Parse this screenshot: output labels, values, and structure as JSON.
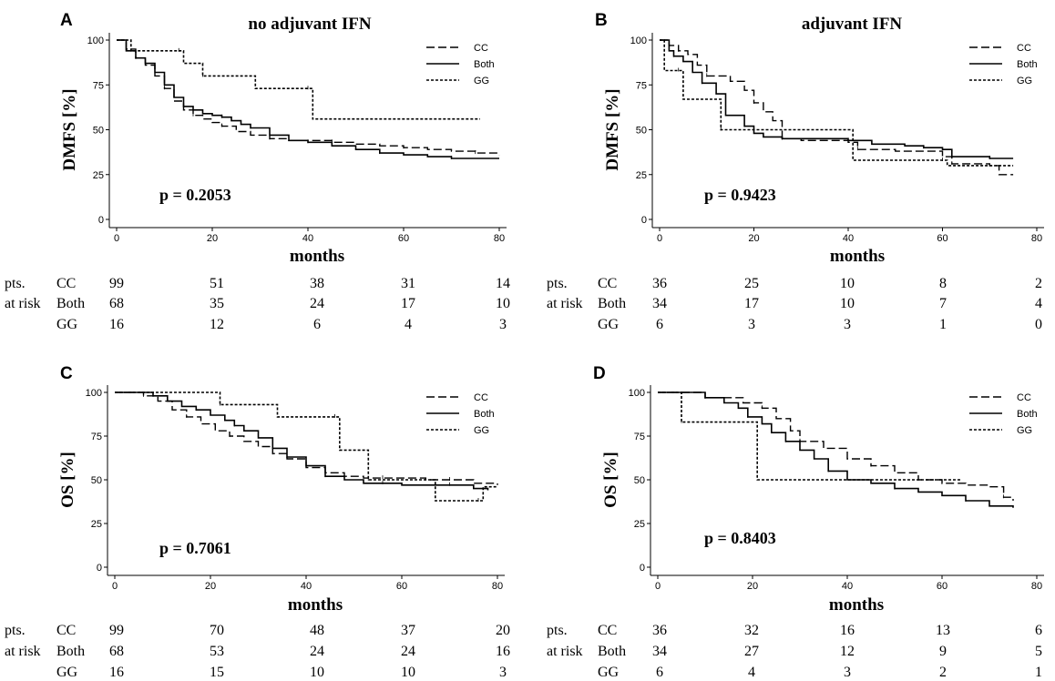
{
  "chart_data": [
    {
      "type": "line",
      "panel": "A",
      "title": "no adjuvant IFN",
      "ylabel": "DMFS [%]",
      "xlabel": "months",
      "xlim": [
        0,
        80
      ],
      "ylim": [
        0,
        100
      ],
      "x_ticks": [
        0,
        20,
        40,
        60,
        80
      ],
      "y_ticks": [
        0,
        25,
        50,
        75,
        100
      ],
      "p_value": "p = 0.2053",
      "series": [
        {
          "name": "CC",
          "style": "dashed",
          "x": [
            0,
            2,
            4,
            6,
            8,
            10,
            12,
            14,
            16,
            18,
            20,
            22,
            25,
            28,
            32,
            36,
            40,
            45,
            50,
            55,
            60,
            65,
            70,
            75,
            80
          ],
          "y": [
            100,
            95,
            90,
            86,
            80,
            73,
            66,
            61,
            58,
            56,
            54,
            52,
            49,
            47,
            45,
            44,
            44,
            43,
            42,
            41,
            40,
            39,
            38,
            37,
            36
          ]
        },
        {
          "name": "Both",
          "style": "solid",
          "x": [
            0,
            2,
            4,
            6,
            8,
            10,
            12,
            14,
            16,
            18,
            20,
            22,
            24,
            26,
            28,
            32,
            36,
            40,
            45,
            50,
            55,
            60,
            65,
            70,
            75,
            80
          ],
          "y": [
            100,
            94,
            90,
            87,
            82,
            75,
            68,
            63,
            61,
            59,
            58,
            57,
            55,
            53,
            51,
            47,
            44,
            43,
            41,
            39,
            37,
            36,
            35,
            34,
            34,
            34
          ]
        },
        {
          "name": "GG",
          "style": "dotted",
          "x": [
            0,
            3,
            13,
            14,
            17,
            18,
            28,
            29,
            40,
            41,
            76
          ],
          "y": [
            100,
            94,
            94,
            87,
            87,
            80,
            80,
            73,
            73,
            56,
            56
          ]
        }
      ],
      "legend": [
        "CC",
        "Both",
        "GG"
      ],
      "risk_table": {
        "label1": "pts.",
        "label2": "at risk",
        "rows": [
          {
            "name": "CC",
            "values": [
              "99",
              "51",
              "38",
              "31",
              "14"
            ]
          },
          {
            "name": "Both",
            "values": [
              "68",
              "35",
              "24",
              "17",
              "10"
            ]
          },
          {
            "name": "GG",
            "values": [
              "16",
              "12",
              "6",
              "4",
              "3"
            ]
          }
        ]
      }
    },
    {
      "type": "line",
      "panel": "B",
      "title": "adjuvant IFN",
      "ylabel": "DMFS [%]",
      "xlabel": "months",
      "xlim": [
        0,
        80
      ],
      "ylim": [
        0,
        100
      ],
      "x_ticks": [
        0,
        20,
        40,
        60,
        80
      ],
      "y_ticks": [
        0,
        25,
        50,
        75,
        100
      ],
      "p_value": "p = 0.9423",
      "series": [
        {
          "name": "CC",
          "style": "dashed",
          "x": [
            0,
            2,
            4,
            6,
            8,
            10,
            15,
            18,
            20,
            22,
            24,
            26,
            30,
            40,
            42,
            50,
            60,
            62,
            70,
            72,
            75
          ],
          "y": [
            100,
            97,
            94,
            92,
            86,
            80,
            77,
            72,
            65,
            60,
            55,
            45,
            44,
            43,
            39,
            38,
            35,
            31,
            30,
            25,
            25
          ]
        },
        {
          "name": "Both",
          "style": "solid",
          "x": [
            0,
            2,
            3,
            5,
            7,
            9,
            12,
            14,
            18,
            20,
            22,
            26,
            30,
            35,
            40,
            45,
            52,
            56,
            60,
            62,
            70,
            75
          ],
          "y": [
            100,
            94,
            91,
            88,
            82,
            76,
            70,
            58,
            52,
            48,
            46,
            45,
            45,
            45,
            44,
            42,
            41,
            40,
            39,
            35,
            34,
            34
          ]
        },
        {
          "name": "GG",
          "style": "dotted",
          "x": [
            0,
            1,
            4,
            5,
            12,
            13,
            40,
            41,
            60,
            61,
            75
          ],
          "y": [
            100,
            83,
            83,
            67,
            67,
            50,
            50,
            33,
            33,
            30,
            30
          ]
        }
      ],
      "legend": [
        "CC",
        "Both",
        "GG"
      ],
      "risk_table": {
        "label1": "pts.",
        "label2": "at risk",
        "rows": [
          {
            "name": "CC",
            "values": [
              "36",
              "25",
              "10",
              "8",
              "2"
            ]
          },
          {
            "name": "Both",
            "values": [
              "34",
              "17",
              "10",
              "7",
              "4"
            ]
          },
          {
            "name": "GG",
            "values": [
              "6",
              "3",
              "3",
              "1",
              "0"
            ]
          }
        ]
      }
    },
    {
      "type": "line",
      "panel": "C",
      "title": "",
      "ylabel": "OS [%]",
      "xlabel": "months",
      "xlim": [
        0,
        80
      ],
      "ylim": [
        0,
        100
      ],
      "x_ticks": [
        0,
        20,
        40,
        60,
        80
      ],
      "y_ticks": [
        0,
        25,
        50,
        75,
        100
      ],
      "p_value": "p = 0.7061",
      "series": [
        {
          "name": "CC",
          "style": "dashed",
          "x": [
            0,
            3,
            6,
            9,
            12,
            15,
            18,
            21,
            24,
            27,
            30,
            33,
            36,
            40,
            44,
            48,
            52,
            56,
            60,
            65,
            70,
            75,
            80
          ],
          "y": [
            100,
            100,
            98,
            95,
            90,
            86,
            82,
            78,
            75,
            72,
            69,
            65,
            62,
            57,
            54,
            52,
            51,
            51,
            51,
            50,
            50,
            48,
            47
          ]
        },
        {
          "name": "Both",
          "style": "solid",
          "x": [
            0,
            4,
            8,
            11,
            14,
            17,
            20,
            23,
            25,
            27,
            30,
            33,
            36,
            40,
            44,
            48,
            52,
            56,
            60,
            65,
            70,
            75,
            78
          ],
          "y": [
            100,
            100,
            98,
            95,
            92,
            90,
            87,
            84,
            81,
            78,
            74,
            68,
            63,
            58,
            52,
            50,
            48,
            48,
            47,
            47,
            47,
            45,
            44
          ]
        },
        {
          "name": "GG",
          "style": "dotted",
          "x": [
            0,
            21,
            22,
            33,
            34,
            46,
            47,
            52,
            53,
            66,
            67,
            76,
            77,
            80
          ],
          "y": [
            100,
            100,
            93,
            93,
            86,
            86,
            67,
            67,
            50,
            50,
            38,
            38,
            46,
            46
          ]
        }
      ],
      "legend": [
        "CC",
        "Both",
        "GG"
      ],
      "risk_table": {
        "label1": "pts.",
        "label2": "at risk",
        "rows": [
          {
            "name": "CC",
            "values": [
              "99",
              "70",
              "48",
              "37",
              "20"
            ]
          },
          {
            "name": "Both",
            "values": [
              "68",
              "53",
              "24",
              "24",
              "16"
            ]
          },
          {
            "name": "GG",
            "values": [
              "16",
              "15",
              "10",
              "10",
              "3"
            ]
          }
        ]
      }
    },
    {
      "type": "line",
      "panel": "D",
      "title": "",
      "ylabel": "OS [%]",
      "xlabel": "months",
      "xlim": [
        0,
        80
      ],
      "ylim": [
        0,
        100
      ],
      "x_ticks": [
        0,
        20,
        40,
        60,
        80
      ],
      "y_ticks": [
        0,
        25,
        50,
        75,
        100
      ],
      "p_value": "p = 0.8403",
      "series": [
        {
          "name": "CC",
          "style": "dashed",
          "x": [
            0,
            8,
            10,
            15,
            18,
            22,
            25,
            28,
            30,
            35,
            40,
            45,
            50,
            55,
            60,
            65,
            70,
            73,
            75
          ],
          "y": [
            100,
            100,
            97,
            97,
            94,
            91,
            85,
            78,
            72,
            68,
            62,
            58,
            54,
            50,
            48,
            47,
            46,
            40,
            38
          ]
        },
        {
          "name": "Both",
          "style": "solid",
          "x": [
            0,
            6,
            10,
            14,
            17,
            19,
            22,
            24,
            27,
            30,
            33,
            36,
            40,
            45,
            50,
            55,
            60,
            65,
            70,
            75
          ],
          "y": [
            100,
            100,
            97,
            94,
            91,
            86,
            82,
            77,
            72,
            67,
            62,
            55,
            50,
            48,
            45,
            43,
            41,
            38,
            35,
            34
          ]
        },
        {
          "name": "GG",
          "style": "dotted",
          "x": [
            0,
            4,
            5,
            20,
            21,
            64
          ],
          "y": [
            100,
            100,
            83,
            83,
            50,
            50
          ]
        }
      ],
      "legend": [
        "CC",
        "Both",
        "GG"
      ],
      "risk_table": {
        "label1": "pts.",
        "label2": "at risk",
        "rows": [
          {
            "name": "CC",
            "values": [
              "36",
              "32",
              "16",
              "13",
              "6"
            ]
          },
          {
            "name": "Both",
            "values": [
              "34",
              "27",
              "12",
              "9",
              "5"
            ]
          },
          {
            "name": "GG",
            "values": [
              "6",
              "4",
              "3",
              "2",
              "1"
            ]
          }
        ]
      }
    }
  ]
}
